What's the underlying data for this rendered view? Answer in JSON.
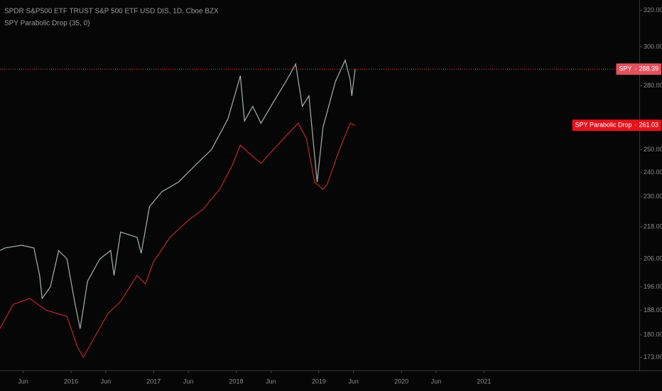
{
  "chart_data": {
    "type": "line",
    "title": "SPDR S&P500 ETF TRUST S&P 500 ETF USD DIS, 1D, Cboe BZX",
    "subtitle": "SPY Parabolic Drop (35, 0)",
    "log_scale": true,
    "grid": false,
    "xlim": [
      2015.14,
      2022.88
    ],
    "ylim": [
      169,
      326
    ],
    "xticks": [
      {
        "value": 2015.42,
        "label": "Jun"
      },
      {
        "value": 2016.0,
        "label": "2016"
      },
      {
        "value": 2016.42,
        "label": "Jun"
      },
      {
        "value": 2017.0,
        "label": "2017"
      },
      {
        "value": 2017.42,
        "label": "Jun"
      },
      {
        "value": 2018.0,
        "label": "2018"
      },
      {
        "value": 2018.42,
        "label": "Jun"
      },
      {
        "value": 2019.0,
        "label": "2019"
      },
      {
        "value": 2019.42,
        "label": "Jun"
      },
      {
        "value": 2020.0,
        "label": "2020"
      },
      {
        "value": 2020.42,
        "label": "Jun"
      },
      {
        "value": 2021.0,
        "label": "2021"
      }
    ],
    "yticks": [
      {
        "value": 173,
        "label": "173.00"
      },
      {
        "value": 180,
        "label": "180.00"
      },
      {
        "value": 188,
        "label": "188.00"
      },
      {
        "value": 196,
        "label": "196.00"
      },
      {
        "value": 206,
        "label": "206.00"
      },
      {
        "value": 218,
        "label": "218.00"
      },
      {
        "value": 230,
        "label": "230.00"
      },
      {
        "value": 240,
        "label": "240.00"
      },
      {
        "value": 250,
        "label": "250.00"
      },
      {
        "value": 280,
        "label": "280.00"
      },
      {
        "value": 300,
        "label": "300.00"
      },
      {
        "value": 320,
        "label": "320.00"
      }
    ],
    "series": [
      {
        "name": "SPY",
        "color": "#a7b2ae",
        "label_color": "#e0525e",
        "x": [
          2015.14,
          2015.2,
          2015.4,
          2015.55,
          2015.62,
          2015.65,
          2015.75,
          2015.85,
          2015.95,
          2016.05,
          2016.11,
          2016.2,
          2016.35,
          2016.48,
          2016.52,
          2016.6,
          2016.8,
          2016.85,
          2016.95,
          2017.1,
          2017.3,
          2017.5,
          2017.7,
          2017.9,
          2018.05,
          2018.1,
          2018.2,
          2018.3,
          2018.45,
          2018.6,
          2018.72,
          2018.8,
          2018.88,
          2018.98,
          2019.05,
          2019.2,
          2019.32,
          2019.38,
          2019.4,
          2019.44
        ],
        "values": [
          209,
          210,
          211,
          210,
          200,
          192,
          196,
          209,
          206,
          190,
          182,
          198,
          206,
          209,
          200,
          216,
          214,
          208,
          226,
          232,
          236,
          243,
          250,
          264,
          285,
          263,
          270,
          262,
          272,
          282,
          291,
          270,
          275,
          236,
          260,
          282,
          293,
          283,
          275,
          288.39
        ]
      },
      {
        "name": "SPY Parabolic Drop",
        "color": "#c0262b",
        "label_color": "#e3141e",
        "x": [
          2015.14,
          2015.3,
          2015.5,
          2015.7,
          2015.95,
          2016.08,
          2016.15,
          2016.3,
          2016.45,
          2016.6,
          2016.8,
          2016.9,
          2017.0,
          2017.2,
          2017.4,
          2017.6,
          2017.8,
          2017.95,
          2018.05,
          2018.2,
          2018.3,
          2018.45,
          2018.6,
          2018.75,
          2018.85,
          2018.95,
          2019.05,
          2019.1,
          2019.25,
          2019.38,
          2019.44
        ],
        "values": [
          182,
          190,
          192,
          188,
          186,
          176,
          173,
          180,
          187,
          191,
          200,
          197,
          205,
          214,
          220,
          225,
          233,
          243,
          252,
          247,
          244,
          250,
          256,
          262,
          255,
          236,
          233,
          235,
          250,
          262,
          261.03
        ]
      }
    ]
  }
}
